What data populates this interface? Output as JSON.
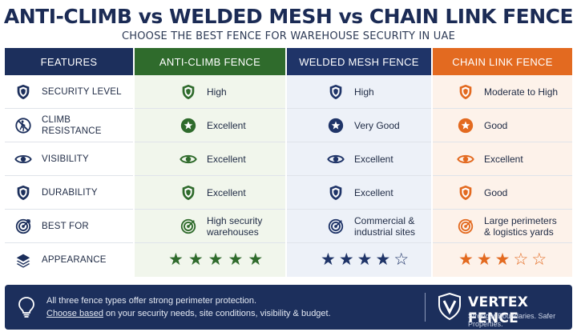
{
  "title": "ANTI-CLIMB vs WELDED MESH vs CHAIN LINK FENCE",
  "subtitle": "CHOOSE THE BEST FENCE FOR WAREHOUSE SECURITY IN UAE",
  "colors": {
    "navy": "#1c2f5c",
    "green": "#2f6b2c",
    "blue": "#1f3468",
    "orange": "#e36a20"
  },
  "headers": {
    "features": "FEATURES",
    "anti": "ANTI-CLIMB FENCE",
    "welded": "WELDED MESH FENCE",
    "chain": "CHAIN LINK FENCE"
  },
  "features": [
    {
      "label": "SECURITY LEVEL",
      "icon": "shield-icon"
    },
    {
      "label": "CLIMB RESISTANCE",
      "icon": "no-climbing-icon"
    },
    {
      "label": "VISIBILITY",
      "icon": "eye-icon"
    },
    {
      "label": "DURABILITY",
      "icon": "shield-icon"
    },
    {
      "label": "BEST FOR",
      "icon": "target-icon"
    },
    {
      "label": "APPEARANCE",
      "icon": "layers-icon"
    }
  ],
  "anti": {
    "security": "High",
    "climb": "Excellent",
    "visibility": "Excellent",
    "durability": "Excellent",
    "best_for": "High security warehouses",
    "appearance_rating": 5
  },
  "welded": {
    "security": "High",
    "climb": "Very Good",
    "visibility": "Excellent",
    "durability": "Excellent",
    "best_for": "Commercial & industrial sites",
    "appearance_rating": 4
  },
  "chain": {
    "security": "Moderate to High",
    "climb": "Good",
    "visibility": "Excellent",
    "durability": "Good",
    "best_for": "Large perimeters & logistics yards",
    "appearance_rating": 3
  },
  "footer": {
    "line1": "All three fence types offer strong perimeter protection.",
    "line2_underlined": "Choose based",
    "line2_rest": " on your security needs, site conditions, visibility & budget.",
    "brand": "VERTEX FENCE",
    "tagline": "Stronger Boundaries. Safer Properties."
  }
}
